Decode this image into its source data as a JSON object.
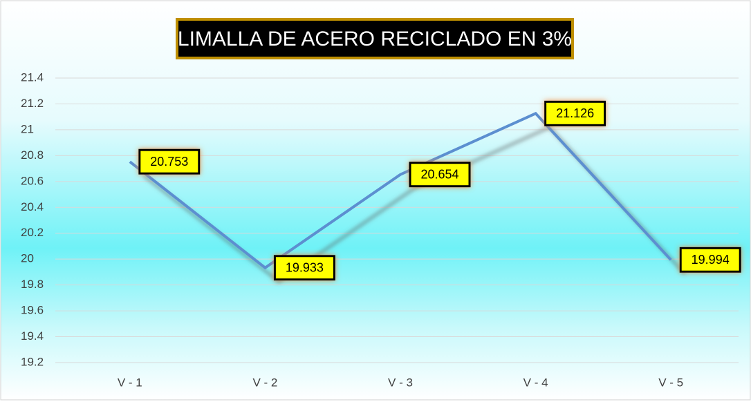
{
  "chart_data": {
    "type": "line",
    "title": "LIMALLA DE ACERO RECICLADO EN 3%",
    "categories": [
      "V - 1",
      "V - 2",
      "V - 3",
      "V - 4",
      "V - 5"
    ],
    "values": [
      20.753,
      19.933,
      20.654,
      21.126,
      19.994
    ],
    "color": "#5b8fd0",
    "ylim": [
      19.2,
      21.4
    ],
    "yticks": [
      19.2,
      19.4,
      19.6,
      19.8,
      20,
      20.2,
      20.4,
      20.6,
      20.8,
      21,
      21.2,
      21.4
    ],
    "grid": true
  }
}
